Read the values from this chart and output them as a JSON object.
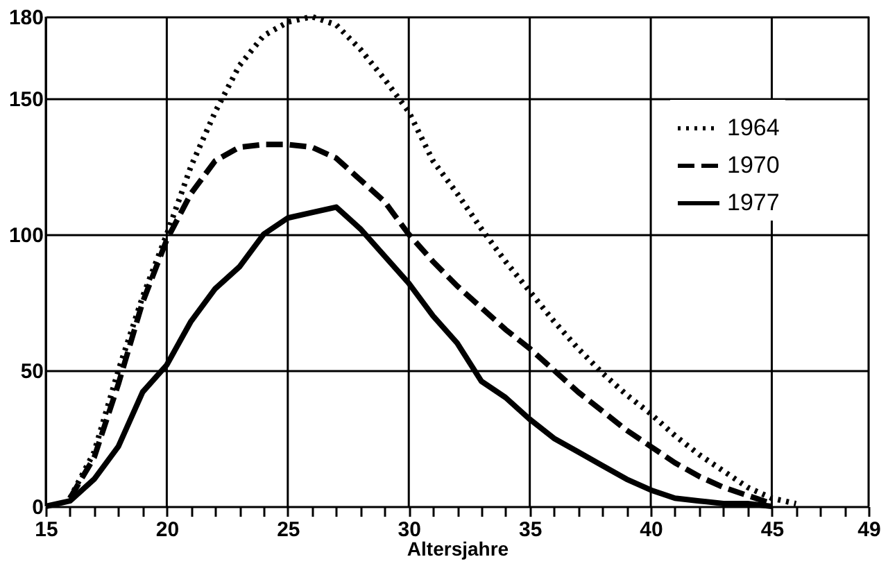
{
  "chart_data": {
    "type": "line",
    "xlabel": "Altersjahre",
    "x": [
      15,
      16,
      17,
      18,
      19,
      20,
      21,
      22,
      23,
      24,
      25,
      26,
      27,
      28,
      29,
      30,
      31,
      32,
      33,
      34,
      35,
      36,
      37,
      38,
      39,
      40,
      41,
      42,
      43,
      44,
      45,
      46
    ],
    "series": [
      {
        "name": "1964",
        "color": "#000000",
        "line_style": "dotted",
        "values": [
          null,
          3,
          20,
          50,
          77,
          100,
          125,
          145,
          162,
          173,
          178,
          180,
          177,
          168,
          157,
          145,
          127,
          115,
          102,
          90,
          79,
          68,
          58,
          49,
          41,
          34,
          26,
          19,
          13,
          7,
          3,
          1
        ]
      },
      {
        "name": "1970",
        "color": "#000000",
        "line_style": "dashed",
        "values": [
          null,
          3,
          18,
          45,
          75,
          98,
          115,
          127,
          132,
          133,
          133,
          132,
          128,
          120,
          112,
          100,
          90,
          81,
          73,
          65,
          58,
          50,
          42,
          35,
          28,
          22,
          16,
          11,
          7,
          4,
          1,
          null
        ]
      },
      {
        "name": "1977",
        "color": "#000000",
        "line_style": "solid",
        "values": [
          0,
          2,
          10,
          22,
          42,
          52,
          68,
          80,
          88,
          100,
          106,
          108,
          110,
          102,
          92,
          82,
          70,
          60,
          46,
          40,
          32,
          25,
          20,
          15,
          10,
          6,
          3,
          2,
          1,
          1,
          0,
          null
        ]
      }
    ],
    "xlim": [
      15,
      49
    ],
    "xticks": [
      15,
      {
        "value": 16,
        "label": null
      },
      {
        "value": 17,
        "label": null
      },
      {
        "value": 18,
        "label": null
      },
      {
        "value": 19,
        "label": null
      },
      20,
      {
        "value": 21,
        "label": null
      },
      {
        "value": 22,
        "label": null
      },
      {
        "value": 23,
        "label": null
      },
      {
        "value": 24,
        "label": null
      },
      25,
      {
        "value": 26,
        "label": null
      },
      {
        "value": 27,
        "label": null
      },
      {
        "value": 28,
        "label": null
      },
      {
        "value": 29,
        "label": null
      },
      30,
      {
        "value": 31,
        "label": null
      },
      {
        "value": 32,
        "label": null
      },
      {
        "value": 33,
        "label": null
      },
      {
        "value": 34,
        "label": null
      },
      35,
      {
        "value": 36,
        "label": null
      },
      {
        "value": 37,
        "label": null
      },
      {
        "value": 38,
        "label": null
      },
      {
        "value": 39,
        "label": null
      },
      40,
      {
        "value": 41,
        "label": null
      },
      {
        "value": 42,
        "label": null
      },
      {
        "value": 43,
        "label": null
      },
      {
        "value": 44,
        "label": null
      },
      45,
      {
        "value": 46,
        "label": null
      },
      {
        "value": 47,
        "label": null
      },
      {
        "value": 48,
        "label": null
      },
      49
    ],
    "ylim": [
      0,
      180
    ],
    "yticks": [
      0,
      50,
      100,
      150,
      180
    ],
    "grid": true,
    "legend": "top right",
    "marker": "none"
  }
}
